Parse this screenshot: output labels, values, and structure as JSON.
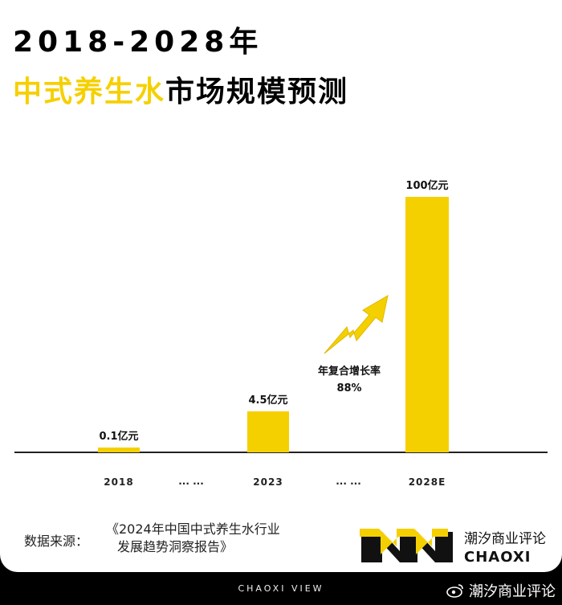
{
  "title": {
    "line1": "2018-2028年",
    "line2_highlight": "中式养生水",
    "line2_rest": "市场规模预测"
  },
  "chart_data": {
    "type": "bar",
    "categories": [
      "2018",
      "2023",
      "2028E"
    ],
    "values": [
      0.1,
      4.5,
      100
    ],
    "value_labels": [
      "0.1亿元",
      "4.5亿元",
      "100亿元"
    ],
    "unit": "亿元",
    "gap_label": "... ...",
    "annotation": {
      "label": "年复合增长率",
      "value": "88%"
    },
    "colors": {
      "bar": "#f5d000",
      "arrow": "#f5d000",
      "axis": "#222222"
    }
  },
  "footer": {
    "source_label": "数据来源：",
    "source_line1": "《2024年中国中式养生水行业",
    "source_line2": "发展趋势洞察报告》",
    "brand_cn": "潮汐商业评论",
    "brand_en": "CHAOXI",
    "view": "CHAOXI VIEW",
    "watermark": "潮汐商业评论"
  }
}
